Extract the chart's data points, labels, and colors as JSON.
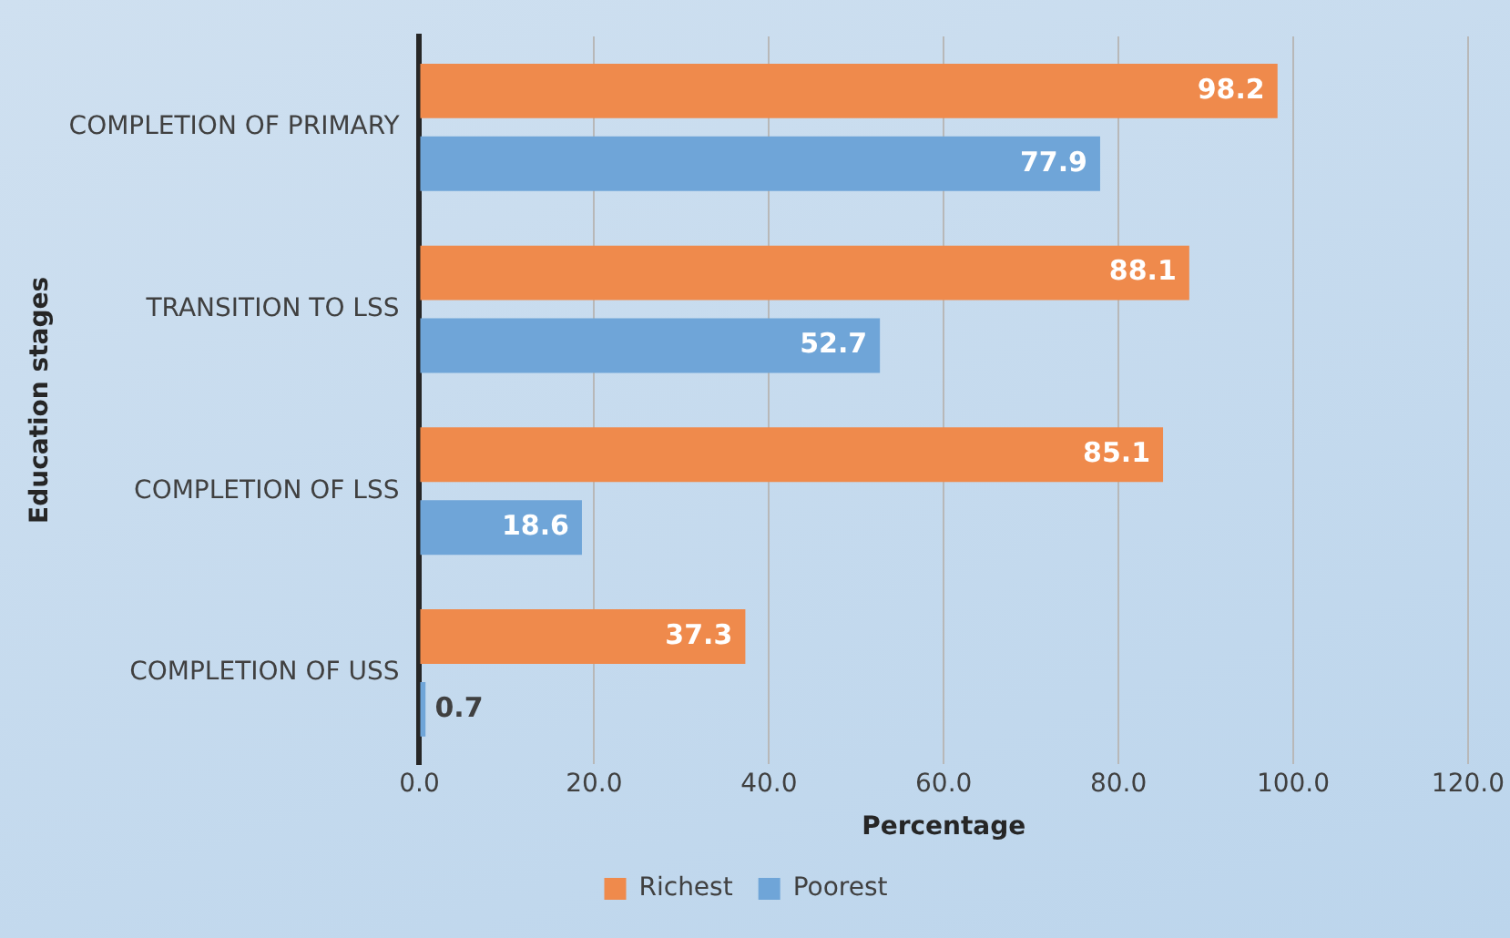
{
  "chart_data": {
    "type": "bar",
    "orientation": "horizontal",
    "xlabel": "Percentage",
    "ylabel": "Education stages",
    "categories": [
      "COMPLETION OF PRIMARY",
      "TRANSITION TO LSS",
      "COMPLETION OF LSS",
      "COMPLETION OF USS"
    ],
    "series": [
      {
        "name": "Richest",
        "color": "#ef8a4c",
        "values": [
          98.2,
          88.1,
          85.1,
          37.3
        ]
      },
      {
        "name": "Poorest",
        "color": "#6fa5d8",
        "values": [
          77.9,
          52.7,
          18.6,
          0.7
        ]
      }
    ],
    "xlim": [
      0,
      120
    ],
    "xticks": [
      {
        "value": 0,
        "label": "0.0"
      },
      {
        "value": 20,
        "label": "20.0"
      },
      {
        "value": 40,
        "label": "40.0"
      },
      {
        "value": 60,
        "label": "60.0"
      },
      {
        "value": 80,
        "label": "80.0"
      },
      {
        "value": 100,
        "label": "100.0"
      },
      {
        "value": 120,
        "label": "120.0"
      }
    ],
    "grid": "x",
    "legend": "bottom",
    "data_labels": true
  }
}
